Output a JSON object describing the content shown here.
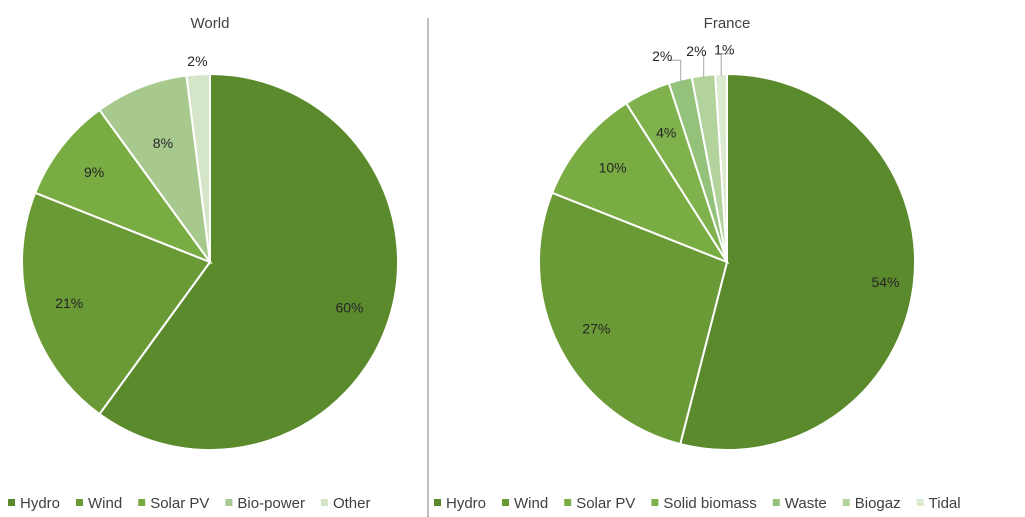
{
  "chart_data": [
    {
      "type": "pie",
      "title": "World",
      "categories": [
        "Hydro",
        "Wind",
        "Solar PV",
        "Bio-power",
        "Other"
      ],
      "values": [
        60,
        21,
        9,
        8,
        2
      ],
      "data_labels": [
        "60%",
        "21%",
        "9%",
        "8%",
        "2%"
      ],
      "colors": [
        "#5b8a2d",
        "#6a9a35",
        "#79ad43",
        "#a8c98e",
        "#d5e6c8"
      ],
      "legend": "bottom"
    },
    {
      "type": "pie",
      "title": "France",
      "categories": [
        "Hydro",
        "Wind",
        "Solar PV",
        "Solid biomass",
        "Waste",
        "Biogaz",
        "Tidal"
      ],
      "values": [
        54,
        27,
        10,
        4,
        2,
        2,
        1
      ],
      "data_labels": [
        "54%",
        "27%",
        "10%",
        "4%",
        "2%",
        "2%",
        "1%"
      ],
      "colors": [
        "#5b8a2d",
        "#6a9a35",
        "#79ad43",
        "#7fb24d",
        "#94c27a",
        "#b3d39d",
        "#dcebd0"
      ],
      "legend": "bottom"
    }
  ]
}
